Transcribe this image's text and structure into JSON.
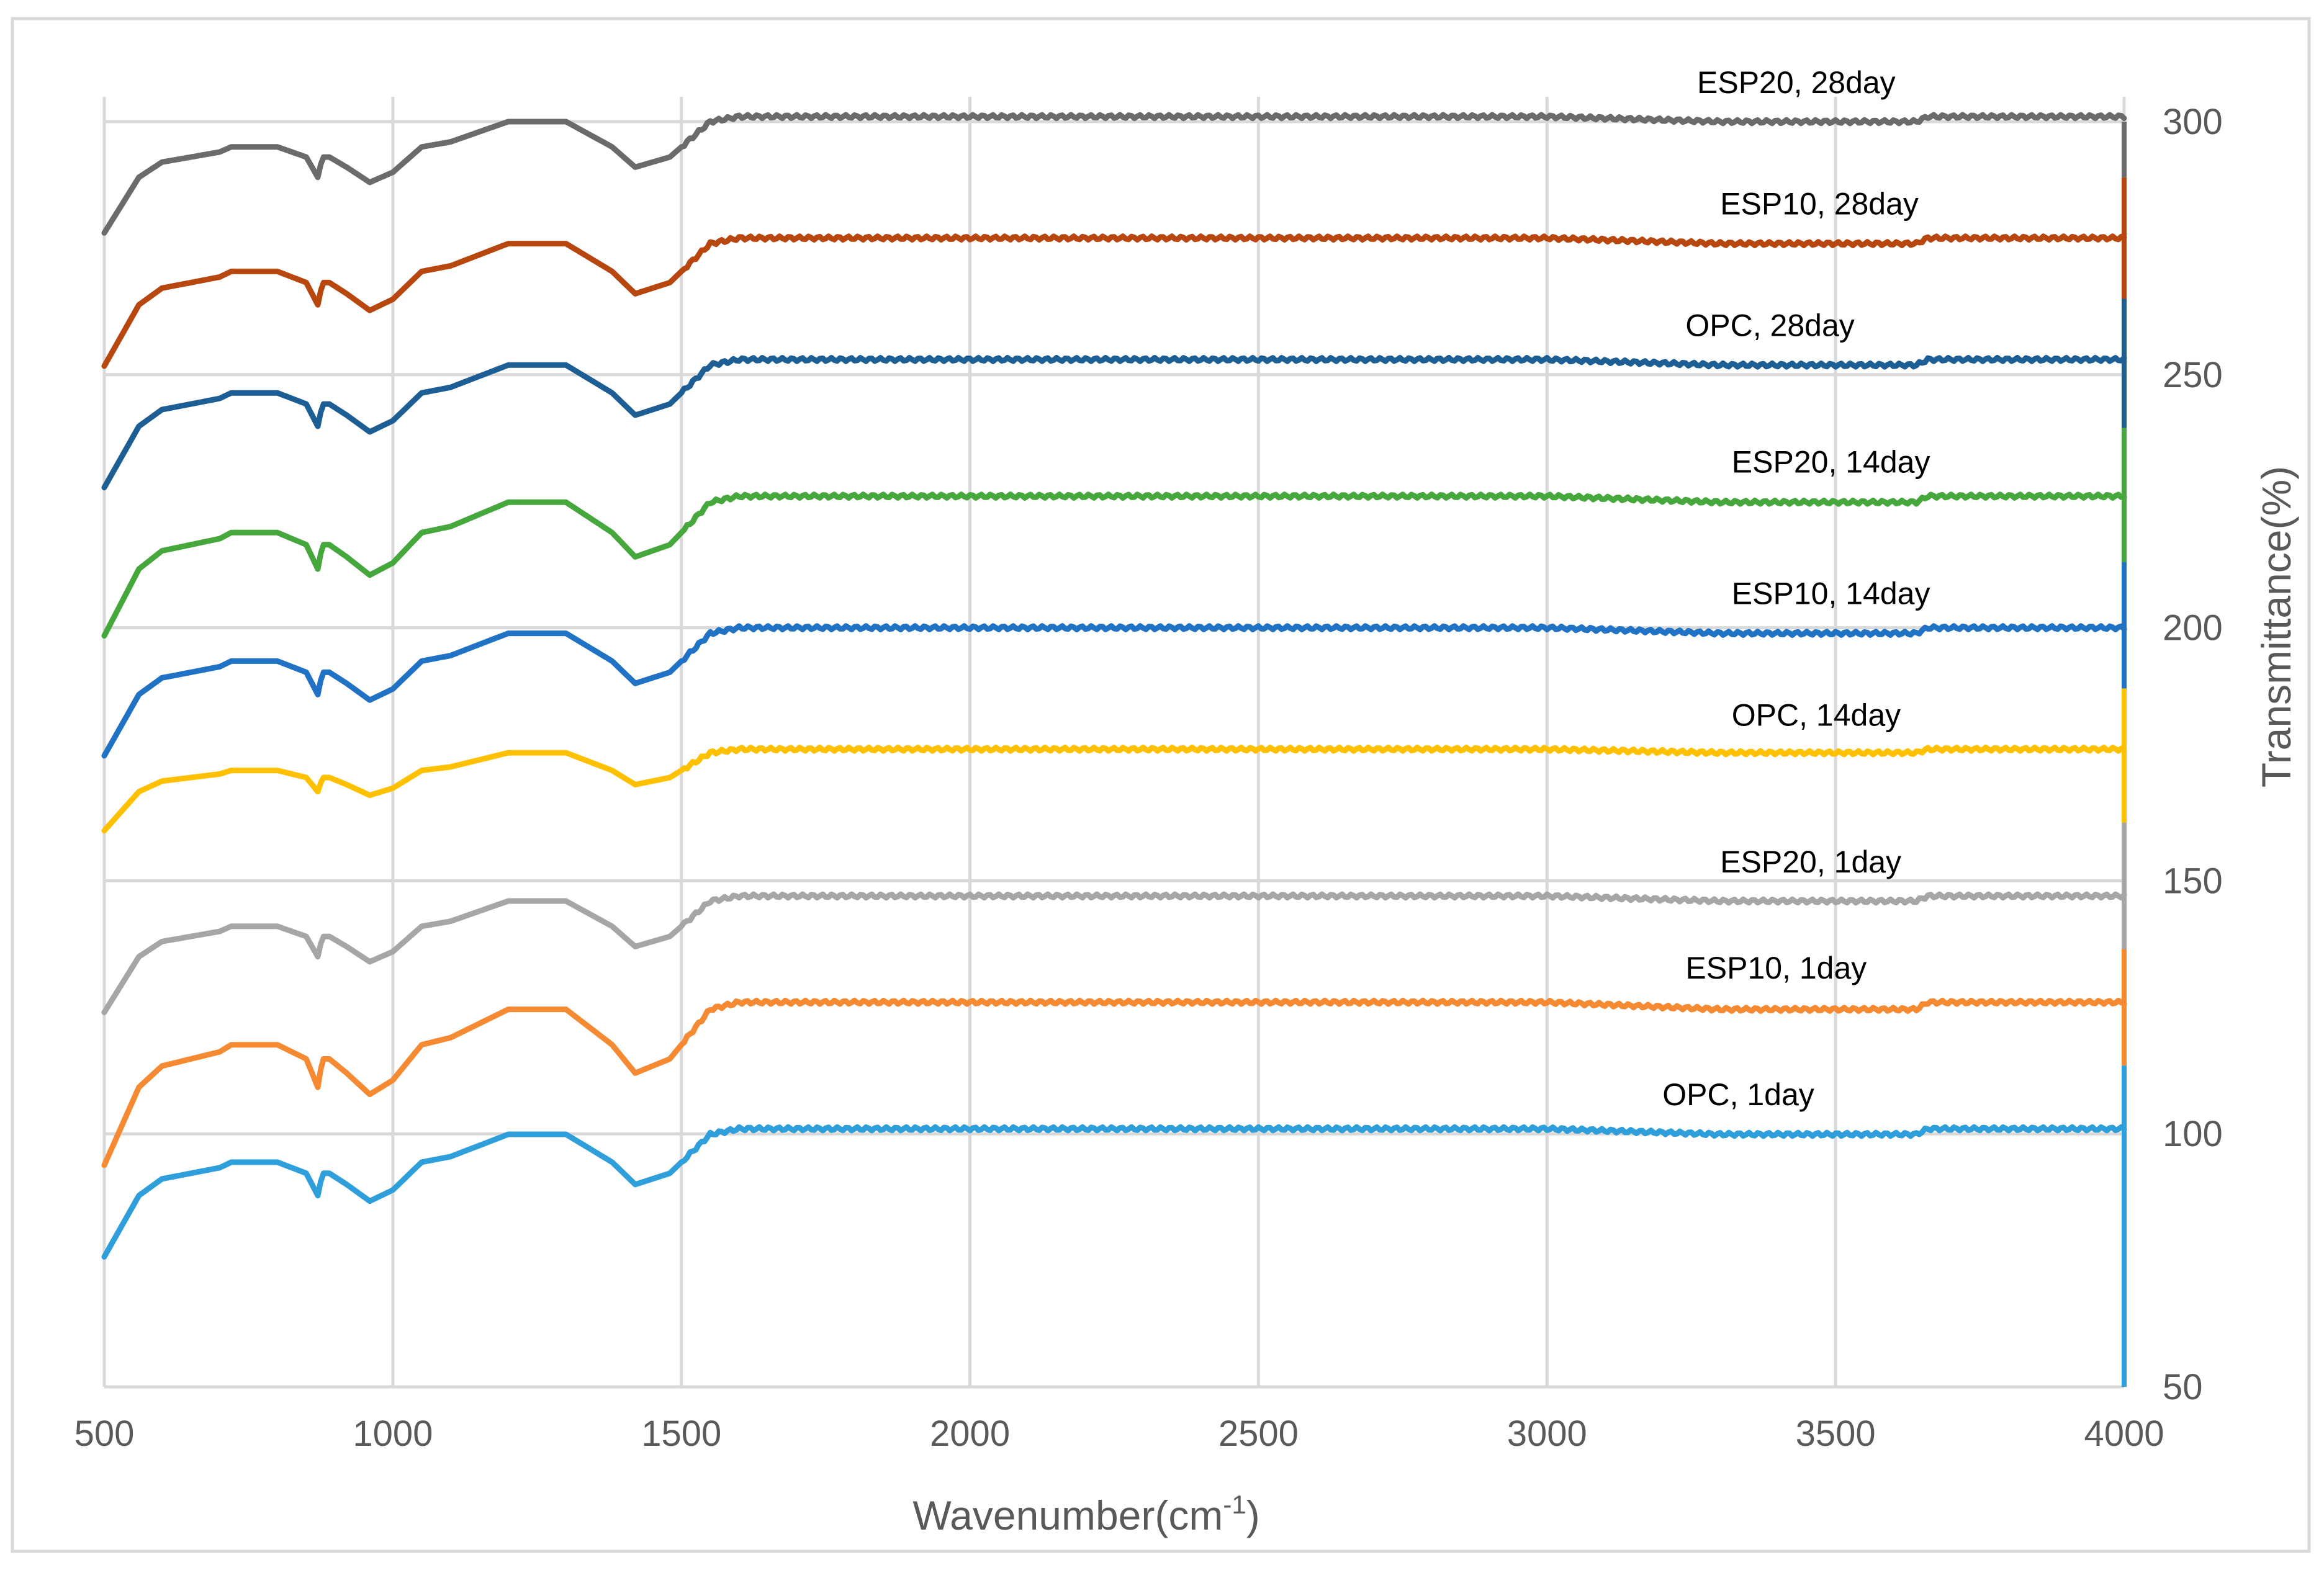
{
  "colors": {
    "grid": "#d9d9d9",
    "axis_text": "#595959",
    "frame": "#d9d9d9"
  },
  "chart_data": {
    "type": "line",
    "title": "",
    "xlabel": "Wavenumber(cm",
    "xlabel_sup": "-1",
    "xlabel_tail": ")",
    "ylabel": "Transmittance(%)",
    "xlim": [
      500,
      4000
    ],
    "ylim": [
      50,
      300
    ],
    "xticks": [
      500,
      1000,
      1500,
      2000,
      2500,
      3000,
      3500,
      4000
    ],
    "yticks": [
      50,
      100,
      150,
      200,
      250,
      300
    ],
    "grid": true,
    "y_axis_position": "right",
    "base_profile": {
      "x": [
        500,
        560,
        600,
        650,
        700,
        720,
        760,
        800,
        850,
        870,
        878,
        890,
        920,
        960,
        1000,
        1050,
        1100,
        1150,
        1200,
        1300,
        1380,
        1420,
        1480,
        1550,
        1600,
        1650,
        1700,
        2000,
        2500,
        3000,
        3300,
        3420,
        3550,
        3640,
        3660,
        3800,
        4000
      ],
      "dev": [
        -23,
        -12,
        -9,
        -8,
        -7,
        -6,
        -6,
        -6,
        -8,
        -12,
        -8,
        -8,
        -10,
        -13,
        -11,
        -6,
        -5,
        -3,
        -1,
        -1,
        -6,
        -10,
        -8,
        -1,
        0,
        0,
        0,
        0,
        0,
        0,
        -1,
        -1,
        -1,
        -1,
        0,
        0,
        0
      ]
    },
    "series": [
      {
        "name": "OPC, 1day",
        "label": "OPC, 1day",
        "color": "#2e9fdb",
        "level": 101,
        "scale": 1.1,
        "label_x": 3200
      },
      {
        "name": "ESP10, 1day",
        "label": "ESP10, 1day",
        "color": "#f58a33",
        "level": 126,
        "scale": 1.4,
        "label_x": 3240
      },
      {
        "name": "ESP20, 1day",
        "label": "ESP20, 1day",
        "color": "#a6a6a6",
        "level": 147,
        "scale": 1.0,
        "label_x": 3300
      },
      {
        "name": "OPC, 14day",
        "label": "OPC, 14day",
        "color": "#ffc000",
        "level": 176,
        "scale": 0.7,
        "label_x": 3320
      },
      {
        "name": "ESP10, 14day",
        "label": "ESP10, 14day",
        "color": "#2072c4",
        "level": 200,
        "scale": 1.1,
        "label_x": 3320
      },
      {
        "name": "ESP20, 14day",
        "label": "ESP20, 14day",
        "color": "#46a83c",
        "level": 226,
        "scale": 1.2,
        "label_x": 3320
      },
      {
        "name": "OPC, 28day",
        "label": "OPC, 28day",
        "color": "#1d5f95",
        "level": 253,
        "scale": 1.1,
        "label_x": 3240
      },
      {
        "name": "ESP10, 28day",
        "label": "ESP10, 28day",
        "color": "#b7470f",
        "level": 277,
        "scale": 1.1,
        "label_x": 3300
      },
      {
        "name": "ESP20, 28day",
        "label": "ESP20, 28day",
        "color": "#6b6b6b",
        "level": 301,
        "scale": 1.0,
        "label_x": 3260
      }
    ]
  }
}
